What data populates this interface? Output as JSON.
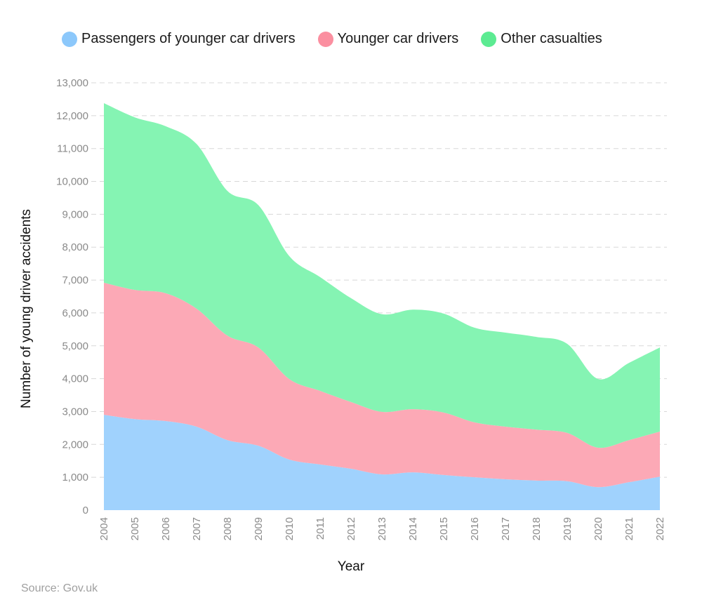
{
  "chart_data": {
    "type": "area",
    "stacked": true,
    "xlabel": "Year",
    "ylabel": "Number of young driver accidents",
    "ylim": [
      0,
      13000
    ],
    "yticks": [
      "0",
      "1,000",
      "2,000",
      "3,000",
      "4,000",
      "5,000",
      "6,000",
      "7,000",
      "8,000",
      "9,000",
      "10,000",
      "11,000",
      "12,000",
      "13,000"
    ],
    "grid": true,
    "legend_position": "top",
    "categories": [
      "2004",
      "2005",
      "2006",
      "2007",
      "2008",
      "2009",
      "2010",
      "2011",
      "2012",
      "2013",
      "2014",
      "2015",
      "2016",
      "2017",
      "2018",
      "2019",
      "2020",
      "2021",
      "2022"
    ],
    "series": [
      {
        "name": "Passengers of younger car drivers",
        "color": "#a0d2fd",
        "legend_color": "#8cc8fb",
        "values": [
          2900,
          2770,
          2710,
          2540,
          2130,
          1960,
          1540,
          1390,
          1260,
          1090,
          1150,
          1070,
          1000,
          940,
          900,
          880,
          700,
          850,
          1020
        ]
      },
      {
        "name": "Younger car drivers",
        "color": "#fca9b6",
        "legend_color": "#fb8fa0",
        "values": [
          4020,
          3930,
          3890,
          3590,
          3180,
          2990,
          2450,
          2240,
          2030,
          1900,
          1920,
          1900,
          1670,
          1600,
          1550,
          1470,
          1200,
          1280,
          1370
        ]
      },
      {
        "name": "Other casualties",
        "color": "#85f4b3",
        "legend_color": "#5ceb92",
        "values": [
          5460,
          5250,
          5080,
          5010,
          4400,
          4330,
          3740,
          3460,
          3160,
          2970,
          3030,
          3010,
          2880,
          2860,
          2820,
          2710,
          2090,
          2350,
          2560
        ]
      }
    ]
  },
  "source": "Source: Gov.uk"
}
